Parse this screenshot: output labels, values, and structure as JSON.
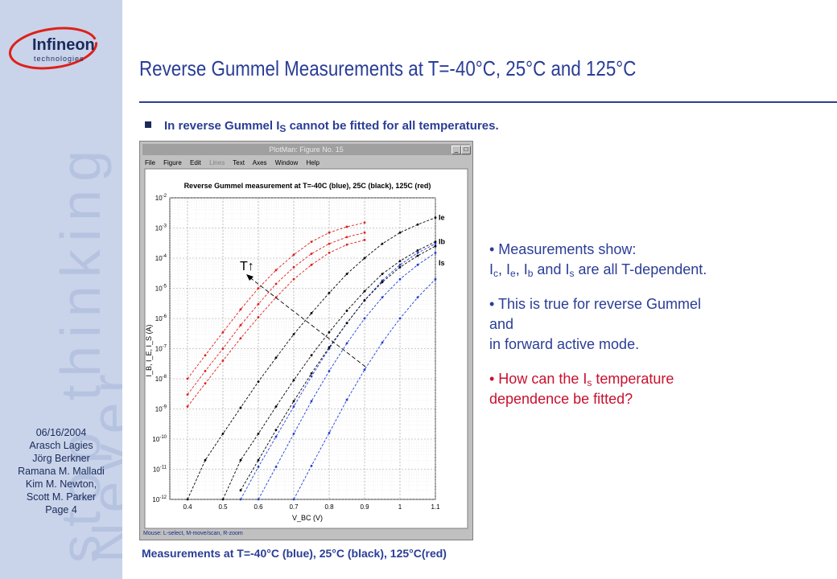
{
  "slide": {
    "title": "Reverse Gummel Measurements at T=-40°C, 25°C and 125°C",
    "bullet": {
      "text": "In reverse Gummel I",
      "sub": "S",
      "rest": " cannot be fitted for all temperatures."
    },
    "caption": "Measurements at T=-40°C (blue), 25°C (black), 125°C(red)"
  },
  "sidebar": {
    "logo_brand": "Infineon",
    "logo_sub": "technologies",
    "watermark_line1": "stop thinking",
    "watermark_line2": "Never",
    "date": "06/16/2004",
    "authors": [
      "Arasch Lagies",
      "Jörg Berkner",
      "Ramana M. Malladi",
      "Kim M. Newton,",
      "Scott M. Parker"
    ],
    "page": "Page 4"
  },
  "figure_window": {
    "window_title": "PlotMan: Figure No. 15",
    "menu": [
      "File",
      "Figure",
      "Edit",
      "Lines",
      "Text",
      "Axes",
      "Window",
      "Help"
    ],
    "status": "Mouse: L-select, M-move/scan, R-zoom"
  },
  "notes": {
    "n1_a": "• Measurements show:",
    "n1_b_parts": [
      " I",
      "c",
      ", I",
      "e",
      ", I",
      "b",
      " and I",
      "s",
      " are all T-dependent."
    ],
    "n2_a": "• This is true for reverse Gummel",
    "n2_b": "and",
    "n2_c": "in forward active mode.",
    "n3_a": "• How can the I",
    "n3_sub": "s",
    "n3_b": " temperature",
    "n3_c": "dependence be fitted?"
  },
  "chart_data": {
    "type": "line",
    "title": "Reverse Gummel measurement at T=-40C (blue), 25C (black), 125C (red)",
    "xlabel": "V_BC (V)",
    "ylabel": "I_B, I_E, I_S (A)",
    "xlim": [
      0.35,
      1.1
    ],
    "ylim": [
      1e-12,
      0.01
    ],
    "ylog": true,
    "grid": true,
    "x_ticks": [
      "0.4",
      "0.5",
      "0.6",
      "0.7",
      "0.8",
      "0.9",
      "1",
      "1.1"
    ],
    "y_ticks": [
      "10^-12",
      "10^-11",
      "10^-10",
      "10^-9",
      "10^-8",
      "10^-7",
      "10^-6",
      "10^-5",
      "10^-4",
      "10^-3",
      "10^-2"
    ],
    "curve_labels": [
      "Ie",
      "Ib",
      "Is"
    ],
    "annotation": "T↑",
    "colors": {
      "-40C": "#1f3fd6",
      "25C": "#000000",
      "125C": "#e0201a"
    },
    "series": [
      {
        "temp": "-40C",
        "color": "#1f3fd6",
        "x": [
          0.55,
          0.6,
          0.65,
          0.7,
          0.75,
          0.8,
          0.85,
          0.9,
          0.95,
          1.0,
          1.05,
          1.1
        ],
        "y": [
          1e-12,
          1.2e-11,
          1.2e-10,
          1.2e-09,
          1.2e-08,
          1e-07,
          7e-07,
          4e-06,
          1.8e-05,
          6e-05,
          0.00015,
          0.0003
        ]
      },
      {
        "temp": "-40C",
        "color": "#1f3fd6",
        "x": [
          0.6,
          0.65,
          0.7,
          0.75,
          0.8,
          0.85,
          0.9,
          0.95,
          1.0,
          1.05,
          1.1
        ],
        "y": [
          1e-12,
          1.2e-11,
          1.5e-10,
          1.8e-09,
          1.8e-08,
          1.5e-07,
          1e-06,
          5e-06,
          2e-05,
          6e-05,
          0.00015
        ]
      },
      {
        "temp": "-40C",
        "color": "#1f3fd6",
        "x": [
          0.7,
          0.75,
          0.8,
          0.85,
          0.9,
          0.95,
          1.0,
          1.05,
          1.1
        ],
        "y": [
          1e-12,
          1.3e-11,
          1.6e-10,
          2e-09,
          2e-08,
          1.6e-07,
          1e-06,
          5e-06,
          2e-05
        ]
      },
      {
        "temp": "25C",
        "color": "#000000",
        "x": [
          0.4,
          0.45,
          0.5,
          0.55,
          0.6,
          0.65,
          0.7,
          0.75,
          0.8,
          0.85,
          0.9,
          0.95,
          1.0,
          1.05,
          1.1
        ],
        "y": [
          1e-12,
          2e-11,
          1.5e-10,
          1.1e-09,
          8e-09,
          5e-08,
          3e-07,
          1.5e-06,
          7e-06,
          3e-05,
          0.0001,
          0.0003,
          0.0007,
          0.0013,
          0.0022
        ]
      },
      {
        "temp": "25C",
        "color": "#000000",
        "x": [
          0.5,
          0.55,
          0.6,
          0.65,
          0.7,
          0.75,
          0.8,
          0.85,
          0.9,
          0.95,
          1.0,
          1.05,
          1.1
        ],
        "y": [
          1e-12,
          2e-11,
          1.5e-10,
          1.2e-09,
          9e-09,
          6e-08,
          3.5e-07,
          1.8e-06,
          8e-06,
          3e-05,
          8e-05,
          0.00018,
          0.00035
        ]
      },
      {
        "temp": "25C",
        "color": "#000000",
        "x": [
          0.55,
          0.6,
          0.65,
          0.7,
          0.75,
          0.8,
          0.85,
          0.9,
          0.95,
          1.0,
          1.05,
          1.1
        ],
        "y": [
          2e-12,
          2e-11,
          2e-10,
          1.8e-09,
          1.5e-08,
          1.1e-07,
          7e-07,
          4e-06,
          1.6e-05,
          5e-05,
          0.00012,
          0.00025
        ]
      },
      {
        "temp": "125C",
        "color": "#e0201a",
        "x": [
          0.4,
          0.45,
          0.5,
          0.55,
          0.6,
          0.65,
          0.7,
          0.75,
          0.8,
          0.85,
          0.9
        ],
        "y": [
          1e-08,
          6e-08,
          3.5e-07,
          2e-06,
          1e-05,
          4e-05,
          0.00013,
          0.00035,
          0.0007,
          0.0011,
          0.0015
        ]
      },
      {
        "temp": "125C",
        "color": "#e0201a",
        "x": [
          0.4,
          0.45,
          0.5,
          0.55,
          0.6,
          0.65,
          0.7,
          0.75,
          0.8,
          0.85,
          0.9
        ],
        "y": [
          3e-09,
          1.8e-08,
          1e-07,
          6e-07,
          3e-06,
          1.4e-05,
          5e-05,
          0.00014,
          0.0003,
          0.0005,
          0.0007
        ]
      },
      {
        "temp": "125C",
        "color": "#e0201a",
        "x": [
          0.4,
          0.45,
          0.5,
          0.55,
          0.6,
          0.65,
          0.7,
          0.75,
          0.8,
          0.85,
          0.9
        ],
        "y": [
          1.2e-09,
          7e-09,
          4e-08,
          2.2e-07,
          1.1e-06,
          5e-06,
          2e-05,
          6e-05,
          0.00015,
          0.00028,
          0.0004
        ]
      }
    ]
  }
}
